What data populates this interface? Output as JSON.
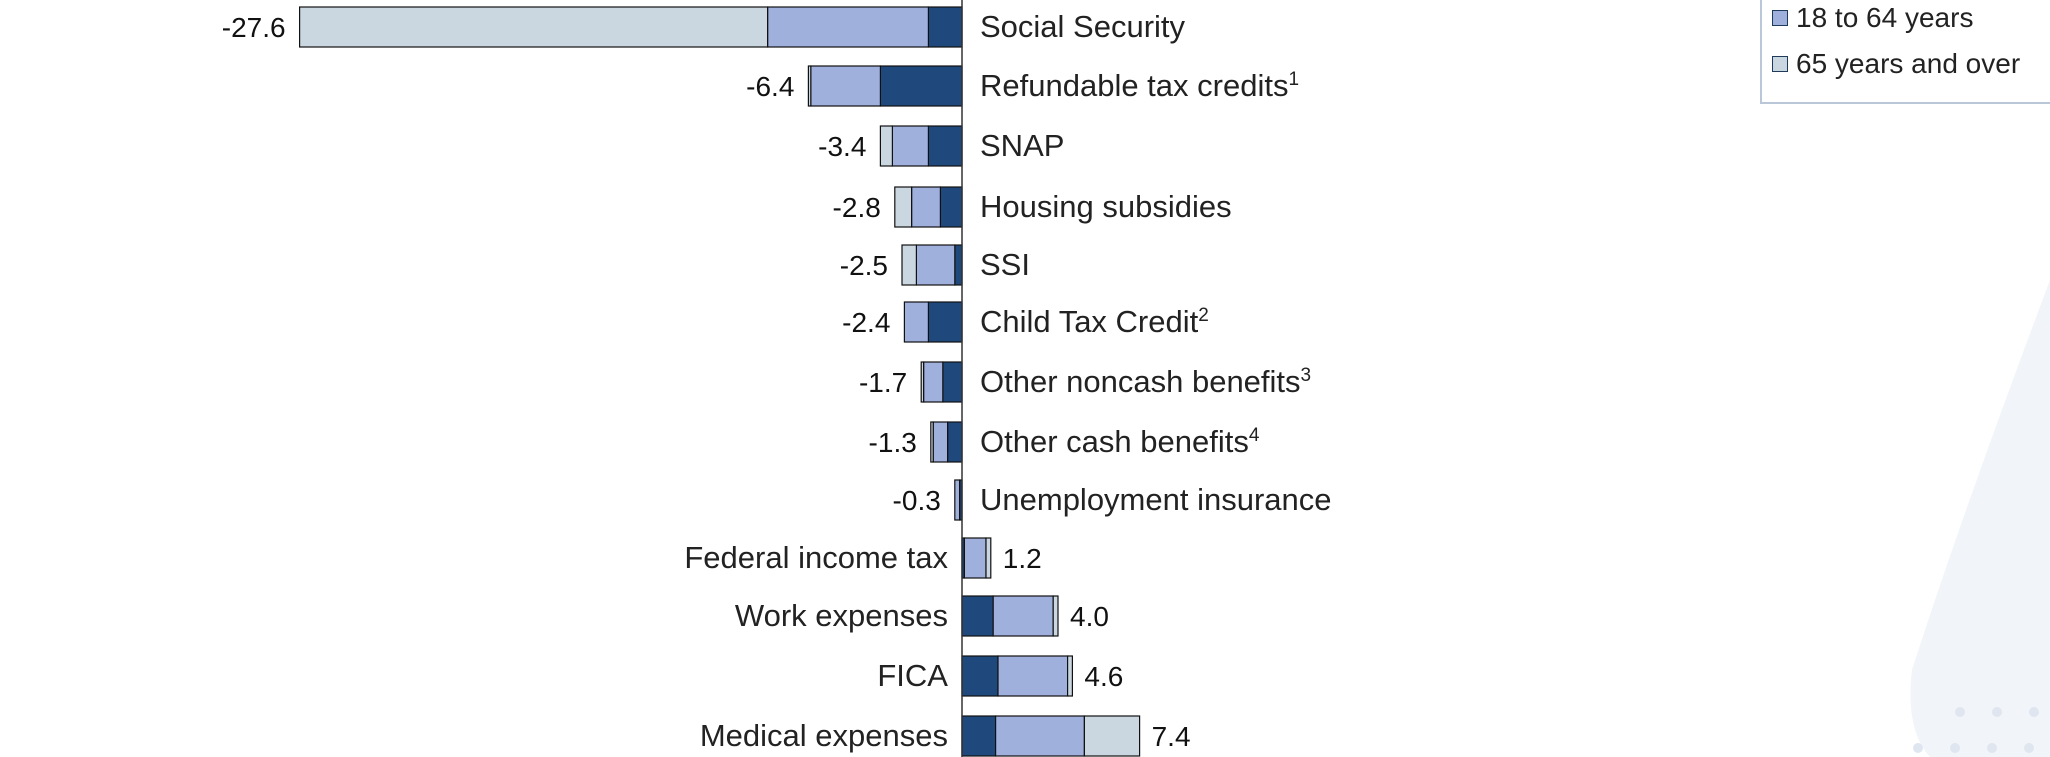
{
  "chart_data": {
    "type": "bar",
    "orientation": "horizontal",
    "stacked": true,
    "categories": [
      {
        "label": "Social Security",
        "sup": "",
        "total": "-27.6"
      },
      {
        "label": "Refundable tax credits",
        "sup": "1",
        "total": "-6.4"
      },
      {
        "label": "SNAP",
        "sup": "",
        "total": "-3.4"
      },
      {
        "label": "Housing subsidies",
        "sup": "",
        "total": "-2.8"
      },
      {
        "label": "SSI",
        "sup": "",
        "total": "-2.5"
      },
      {
        "label": "Child Tax Credit",
        "sup": "2",
        "total": "-2.4"
      },
      {
        "label": "Other noncash benefits",
        "sup": "3",
        "total": "-1.7"
      },
      {
        "label": "Other cash benefits",
        "sup": "4",
        "total": "-1.3"
      },
      {
        "label": "Unemployment insurance",
        "sup": "",
        "total": "-0.3"
      },
      {
        "label": "Federal income tax",
        "sup": "",
        "total": "1.2"
      },
      {
        "label": "Work expenses",
        "sup": "",
        "total": "4.0"
      },
      {
        "label": "FICA",
        "sup": "",
        "total": "4.6"
      },
      {
        "label": "Medical expenses",
        "sup": "",
        "total": "7.4"
      }
    ],
    "series": [
      {
        "key": "under18",
        "color": "#1f497d",
        "values": [
          -1.4,
          -3.4,
          -1.4,
          -0.9,
          -0.3,
          -1.4,
          -0.8,
          -0.6,
          -0.1,
          0.1,
          1.3,
          1.5,
          1.4
        ]
      },
      {
        "key": "age18to64",
        "color": "#a0b0dc",
        "name": "18 to 64 years",
        "values": [
          -6.7,
          -2.9,
          -1.5,
          -1.2,
          -1.6,
          -1.0,
          -0.8,
          -0.6,
          -0.2,
          0.9,
          2.5,
          2.9,
          3.7
        ]
      },
      {
        "key": "age65plus",
        "color": "#cad7e0",
        "name": "65 years and over",
        "values": [
          -19.5,
          -0.1,
          -0.5,
          -0.7,
          -0.6,
          0.0,
          -0.1,
          -0.1,
          0.0,
          0.2,
          0.2,
          0.2,
          2.3
        ]
      }
    ],
    "xlim": [
      -28,
      8
    ]
  },
  "legend": {
    "items": [
      {
        "label": "18 to 64 years",
        "color": "#a0b0dc"
      },
      {
        "label": "65 years and over",
        "color": "#cad7e0"
      }
    ]
  }
}
